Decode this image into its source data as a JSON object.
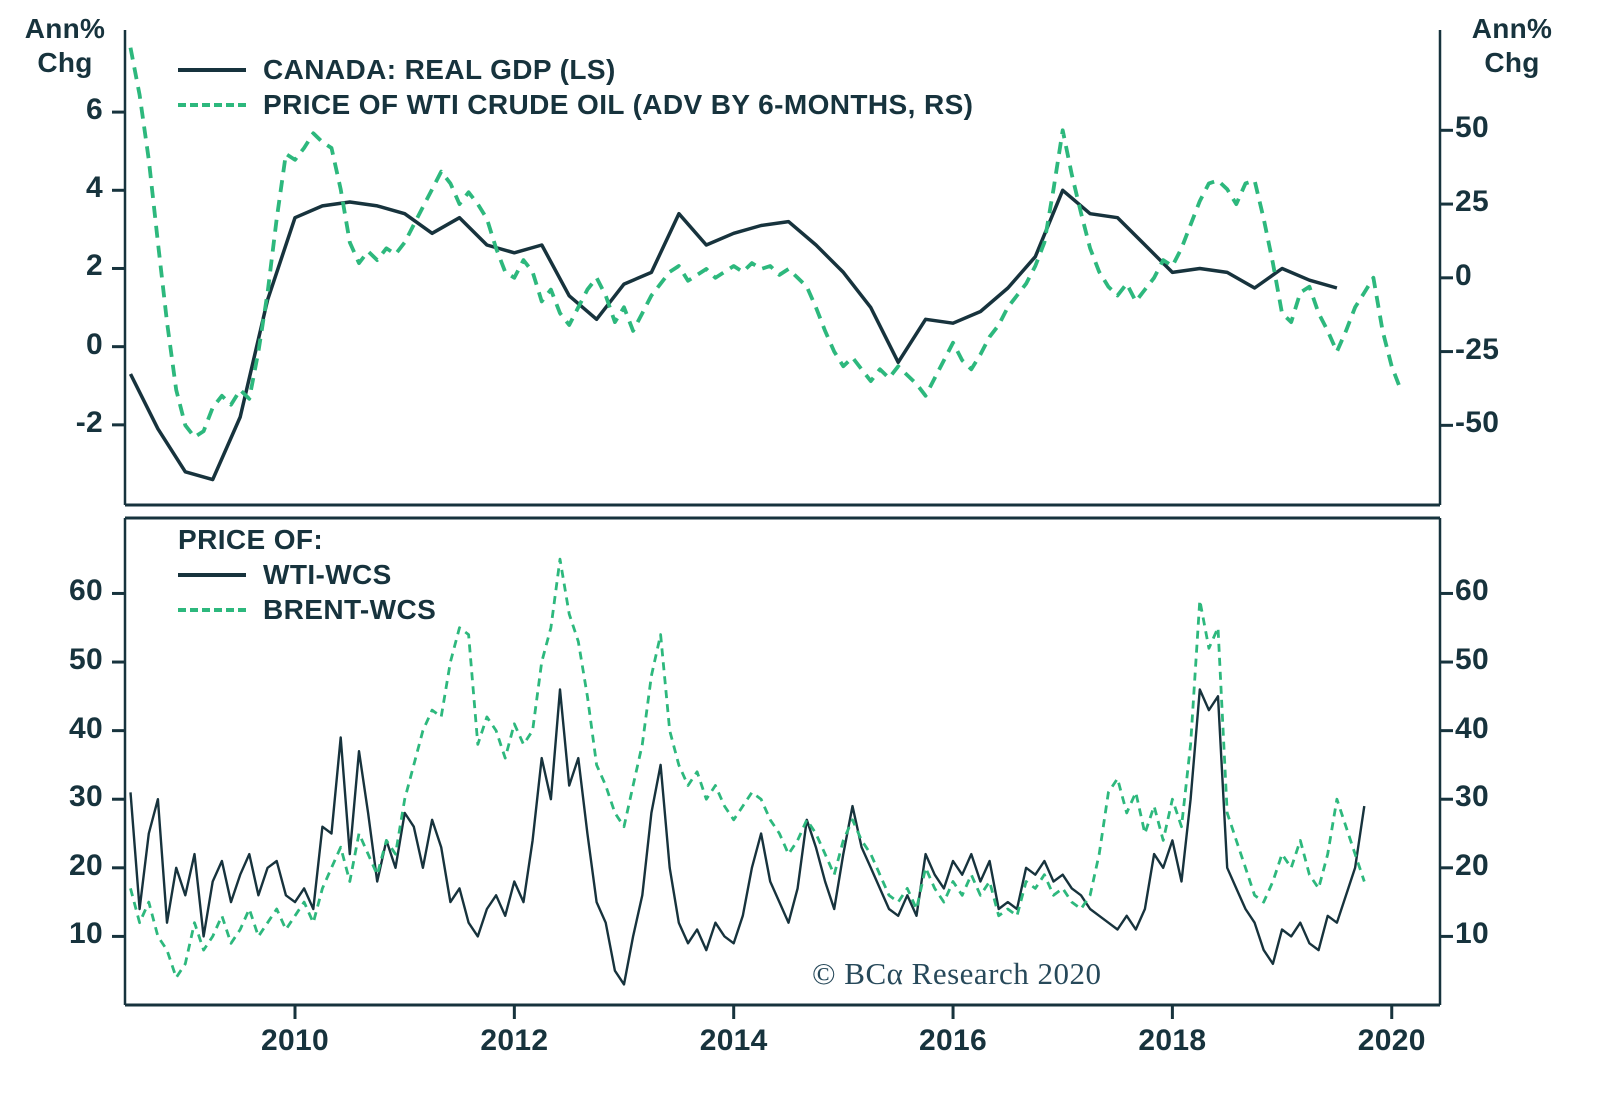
{
  "axis_titles": {
    "left": {
      "line1": "Ann%",
      "line2": "Chg"
    },
    "right": {
      "line1": "Ann%",
      "line2": "Chg"
    }
  },
  "copyright": "© BCα Research 2020",
  "colors": {
    "ink": "#17333d",
    "green": "#2db87d",
    "background": "#ffffff"
  },
  "x_axis": {
    "ticks": [
      2010,
      2012,
      2014,
      2016,
      2018,
      2020
    ]
  },
  "chart_data": [
    {
      "type": "line",
      "panel": "top",
      "title": "",
      "xlim": [
        2008.45,
        2020.44
      ],
      "ylim_left": [
        -4.05,
        8.1
      ],
      "ylim_right": [
        -77,
        84
      ],
      "yticks_left": [
        6,
        4,
        2,
        0,
        -2
      ],
      "yticks_right": [
        50,
        25,
        0,
        -25,
        -50
      ],
      "grid": false,
      "legend_position": "top-left",
      "series": [
        {
          "name": "CANADA: REAL GDP (LS)",
          "axis": "left",
          "style": "solid",
          "color": "#17333d",
          "x_start": 2008.5,
          "x_step": 0.25,
          "values": [
            -0.7,
            -2.1,
            -3.2,
            -3.4,
            -1.8,
            1.2,
            3.3,
            3.6,
            3.7,
            3.6,
            3.4,
            2.9,
            3.3,
            2.6,
            2.4,
            2.6,
            1.3,
            0.7,
            1.6,
            1.9,
            3.4,
            2.6,
            2.9,
            3.1,
            3.2,
            2.6,
            1.9,
            1.0,
            -0.4,
            0.7,
            0.6,
            0.9,
            1.5,
            2.3,
            4.0,
            3.4,
            3.3,
            2.6,
            1.9,
            2.0,
            1.9,
            1.5,
            2.0,
            1.7,
            1.5
          ]
        },
        {
          "name": "PRICE OF WTI CRUDE OIL (ADV BY 6-MONTHS, RS)",
          "axis": "right",
          "style": "dashed",
          "color": "#2db87d",
          "x_start": 2008.5,
          "x_step": 0.08333,
          "values": [
            78,
            62,
            40,
            12,
            -15,
            -38,
            -50,
            -54,
            -52,
            -44,
            -40,
            -43,
            -38,
            -41,
            -25,
            -5,
            20,
            42,
            40,
            44,
            49,
            46,
            44,
            30,
            12,
            5,
            9,
            6,
            10,
            8,
            12,
            18,
            24,
            30,
            36,
            32,
            25,
            29,
            25,
            20,
            10,
            2,
            0,
            6,
            2,
            -8,
            -4,
            -12,
            -16,
            -10,
            -4,
            0,
            -6,
            -15,
            -10,
            -18,
            -12,
            -6,
            -2,
            2,
            4,
            -1,
            1,
            3,
            0,
            2,
            4,
            2,
            5,
            3,
            4,
            1,
            3,
            0,
            -3,
            -10,
            -18,
            -25,
            -30,
            -27,
            -31,
            -35,
            -31,
            -34,
            -30,
            -33,
            -36,
            -40,
            -34,
            -28,
            -22,
            -28,
            -31,
            -26,
            -20,
            -16,
            -10,
            -6,
            -2,
            4,
            12,
            30,
            50,
            35,
            22,
            10,
            2,
            -3,
            -6,
            -2,
            -8,
            -4,
            0,
            6,
            4,
            10,
            18,
            26,
            32,
            33,
            30,
            25,
            32,
            33,
            20,
            5,
            -12,
            -15,
            -5,
            -3,
            -12,
            -18,
            -25,
            -18,
            -10,
            -5,
            0,
            -18,
            -30,
            -38
          ]
        }
      ]
    },
    {
      "type": "line",
      "panel": "bottom",
      "title": "",
      "legend_title": "PRICE OF:",
      "xlim": [
        2008.45,
        2020.44
      ],
      "ylim_left": [
        0,
        71
      ],
      "ylim_right": [
        0,
        71
      ],
      "yticks_left": [
        60,
        50,
        40,
        30,
        20,
        10
      ],
      "yticks_right": [
        60,
        50,
        40,
        30,
        20,
        10
      ],
      "grid": false,
      "legend_position": "top-left",
      "series": [
        {
          "name": "WTI-WCS",
          "axis": "left",
          "style": "solid",
          "color": "#17333d",
          "x_start": 2008.5,
          "x_step": 0.08333,
          "values": [
            31,
            14,
            25,
            30,
            12,
            20,
            16,
            22,
            10,
            18,
            21,
            15,
            19,
            22,
            16,
            20,
            21,
            16,
            15,
            17,
            14,
            26,
            25,
            39,
            22,
            37,
            28,
            18,
            24,
            20,
            28,
            26,
            20,
            27,
            23,
            15,
            17,
            12,
            10,
            14,
            16,
            13,
            18,
            15,
            24,
            36,
            30,
            46,
            32,
            36,
            25,
            15,
            12,
            5,
            3,
            10,
            16,
            28,
            35,
            20,
            12,
            9,
            11,
            8,
            12,
            10,
            9,
            13,
            20,
            25,
            18,
            15,
            12,
            17,
            27,
            23,
            18,
            14,
            22,
            29,
            23,
            20,
            17,
            14,
            13,
            16,
            13,
            22,
            19,
            17,
            21,
            19,
            22,
            18,
            21,
            14,
            15,
            14,
            20,
            19,
            21,
            18,
            19,
            17,
            16,
            14,
            13,
            12,
            11,
            13,
            11,
            14,
            22,
            20,
            24,
            18,
            30,
            46,
            43,
            45,
            20,
            17,
            14,
            12,
            8,
            6,
            11,
            10,
            12,
            9,
            8,
            13,
            12,
            16,
            20,
            29
          ]
        },
        {
          "name": "BRENT-WCS",
          "axis": "left",
          "style": "dashed",
          "color": "#2db87d",
          "x_start": 2008.5,
          "x_step": 0.08333,
          "values": [
            17,
            12,
            15,
            10,
            8,
            4,
            6,
            12,
            8,
            10,
            13,
            9,
            11,
            14,
            10,
            12,
            14,
            11,
            13,
            15,
            12,
            17,
            20,
            23,
            18,
            25,
            22,
            19,
            24,
            22,
            30,
            35,
            40,
            43,
            42,
            50,
            55,
            54,
            38,
            42,
            40,
            36,
            41,
            38,
            40,
            50,
            55,
            65,
            57,
            53,
            45,
            35,
            32,
            28,
            26,
            32,
            38,
            48,
            54,
            40,
            35,
            32,
            34,
            30,
            32,
            29,
            27,
            29,
            31,
            30,
            27,
            25,
            22,
            24,
            27,
            25,
            22,
            19,
            24,
            27,
            24,
            22,
            19,
            16,
            15,
            17,
            14,
            20,
            17,
            15,
            18,
            16,
            19,
            16,
            18,
            13,
            14,
            13,
            18,
            17,
            19,
            16,
            17,
            15,
            14,
            16,
            22,
            31,
            33,
            28,
            31,
            25,
            29,
            24,
            30,
            26,
            38,
            59,
            52,
            55,
            28,
            24,
            20,
            16,
            15,
            18,
            22,
            20,
            24,
            19,
            17,
            22,
            30,
            26,
            22,
            18
          ]
        }
      ]
    }
  ]
}
